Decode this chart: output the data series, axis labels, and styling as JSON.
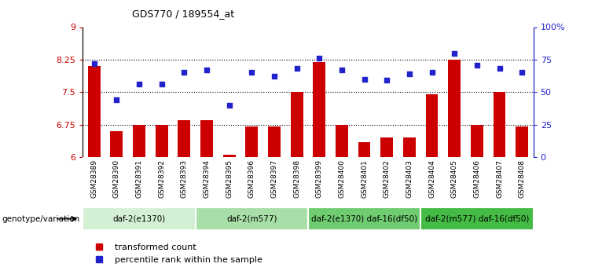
{
  "title": "GDS770 / 189554_at",
  "samples": [
    "GSM28389",
    "GSM28390",
    "GSM28391",
    "GSM28392",
    "GSM28393",
    "GSM28394",
    "GSM28395",
    "GSM28396",
    "GSM28397",
    "GSM28398",
    "GSM28399",
    "GSM28400",
    "GSM28401",
    "GSM28402",
    "GSM28403",
    "GSM28404",
    "GSM28405",
    "GSM28406",
    "GSM28407",
    "GSM28408"
  ],
  "bar_values": [
    8.1,
    6.6,
    6.75,
    6.75,
    6.85,
    6.85,
    6.05,
    6.7,
    6.7,
    7.5,
    8.2,
    6.75,
    6.35,
    6.45,
    6.45,
    7.45,
    8.25,
    6.75,
    7.5,
    6.7
  ],
  "dot_values": [
    72,
    44,
    56,
    56,
    65,
    67,
    40,
    65,
    62,
    68,
    76,
    67,
    60,
    59,
    64,
    65,
    80,
    71,
    68,
    65
  ],
  "ylim_left": [
    6,
    9
  ],
  "ylim_right": [
    0,
    100
  ],
  "yticks_left": [
    6,
    6.75,
    7.5,
    8.25,
    9
  ],
  "yticks_right": [
    0,
    25,
    50,
    75,
    100
  ],
  "ytick_labels_left": [
    "6",
    "6.75",
    "7.5",
    "8.25",
    "9"
  ],
  "ytick_labels_right": [
    "0",
    "25",
    "50",
    "75",
    "100%"
  ],
  "hlines": [
    6.75,
    7.5,
    8.25
  ],
  "bar_color": "#cc0000",
  "dot_color": "#2222cc",
  "groups": [
    {
      "label": "daf-2(e1370)",
      "start": 0,
      "end": 4,
      "color": "#d4f0d4"
    },
    {
      "label": "daf-2(m577)",
      "start": 5,
      "end": 9,
      "color": "#a8dfa8"
    },
    {
      "label": "daf-2(e1370) daf-16(df50)",
      "start": 10,
      "end": 14,
      "color": "#70cc70"
    },
    {
      "label": "daf-2(m577) daf-16(df50)",
      "start": 15,
      "end": 19,
      "color": "#44bb44"
    }
  ],
  "genotype_label": "genotype/variation",
  "legend_bar_label": "transformed count",
  "legend_dot_label": "percentile rank within the sample",
  "sample_bg_color": "#c8c8c8",
  "plot_bg_color": "#ffffff"
}
